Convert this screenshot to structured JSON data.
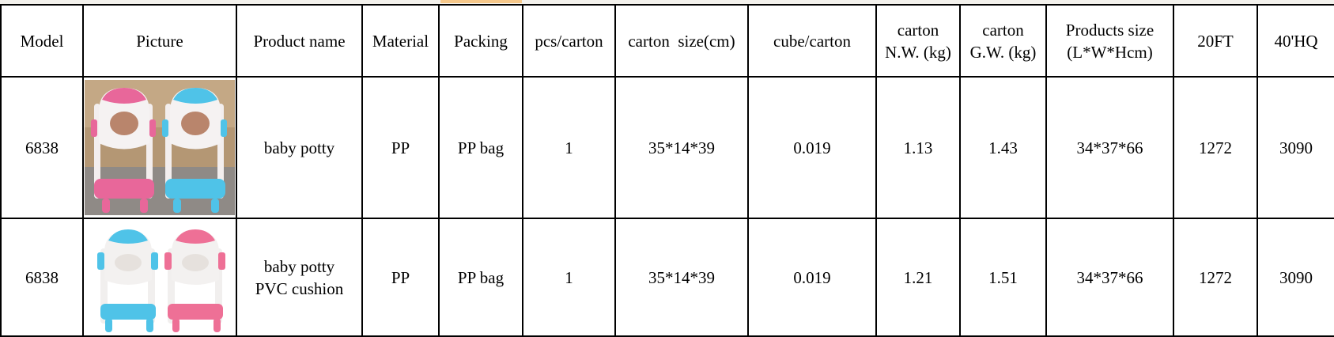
{
  "colors": {
    "pink": "#e8679a",
    "blue": "#4fc3e8",
    "highlight": "#f6c88a"
  },
  "headers": [
    "Model",
    "Picture",
    "Product name",
    "Material",
    "Packing",
    "pcs/carton",
    "carton  size(cm)",
    "cube/carton",
    "carton N.W. (kg)",
    "carton G.W. (kg)",
    "Products size (L*W*Hcm)",
    "20FT",
    "40'HQ"
  ],
  "header_lines": {
    "nw": [
      "carton",
      "N.W. (kg)"
    ],
    "gw": [
      "carton",
      "G.W. (kg)"
    ],
    "ps": [
      "Products size",
      "(L*W*Hcm)"
    ]
  },
  "rows": [
    {
      "model": "6838",
      "picture": "pink and blue potty ladder seats photo",
      "name_lines": [
        "baby potty"
      ],
      "material": "PP",
      "packing": "PP bag",
      "pcs": "1",
      "carton_size": "35*14*39",
      "cube": "0.019",
      "nw": "1.13",
      "gw": "1.43",
      "product_size": "34*37*66",
      "ft20": "1272",
      "hq40": "3090"
    },
    {
      "model": "6838",
      "picture": "blue and pink potty ladder seats with PVC cushion",
      "name_lines": [
        "baby potty",
        "PVC cushion"
      ],
      "material": "PP",
      "packing": "PP bag",
      "pcs": "1",
      "carton_size": "35*14*39",
      "cube": "0.019",
      "nw": "1.21",
      "gw": "1.51",
      "product_size": "34*37*66",
      "ft20": "1272",
      "hq40": "3090"
    }
  ]
}
